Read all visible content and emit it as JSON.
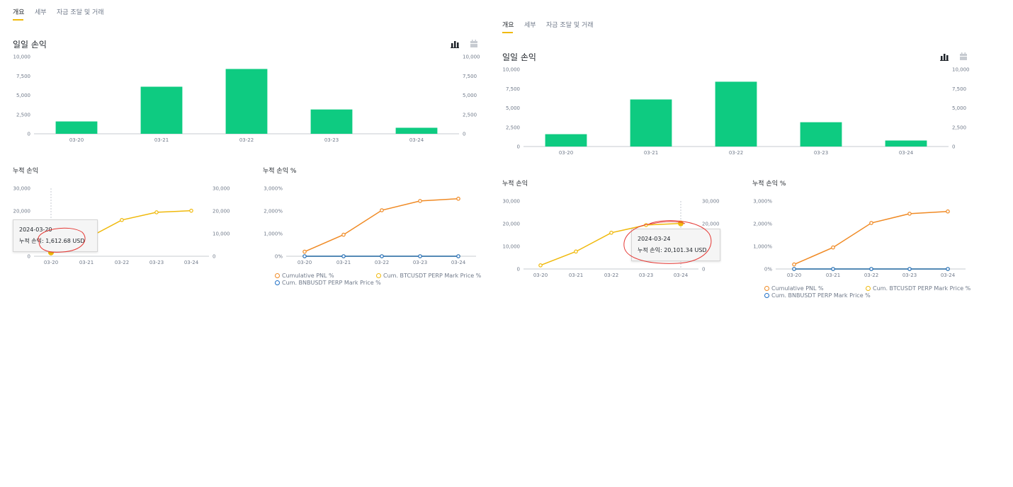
{
  "tabs": [
    "개요",
    "세부",
    "자금 조달 및 거래"
  ],
  "daily_title": "일일 손익",
  "cum_title": "누적 손익",
  "cum_pct_title": "누적 손익 %",
  "icons": {
    "bar_toggle": "bar-chart-icon",
    "calendar_toggle": "calendar-icon"
  },
  "colors": {
    "bar": "#0ecb81",
    "yellow": "#f0b90b",
    "orange": "#f08a24",
    "blue": "#1f6fc5",
    "accent": "#f0b90b"
  },
  "left_tooltip": {
    "date": "2024-03-20",
    "line": "누적 손익: 1,612.68 USD"
  },
  "right_tooltip": {
    "date": "2024-03-24",
    "line": "누적 손익: 20,101.34 USD"
  },
  "chart_data": [
    {
      "type": "bar",
      "title": "일일 손익",
      "categories": [
        "03-20",
        "03-21",
        "03-22",
        "03-23",
        "03-24"
      ],
      "values": [
        1600,
        6100,
        8400,
        3150,
        780
      ],
      "ylim": [
        0,
        10000
      ],
      "left_ticks": [
        "10,000",
        "7,500",
        "5,000",
        "2,500",
        "0"
      ],
      "right_ticks": [
        "10,000",
        "7,500",
        "5,000",
        "2,500",
        "0"
      ]
    },
    {
      "type": "line",
      "title": "누적 손익",
      "categories": [
        "03-20",
        "03-21",
        "03-22",
        "03-23",
        "03-24"
      ],
      "values": [
        1612.68,
        7700,
        16000,
        19400,
        20101.34
      ],
      "ylim": [
        0,
        30000
      ],
      "left_ticks": [
        "30,000",
        "20,000",
        "10,000",
        "0"
      ],
      "right_ticks": [
        "30,000",
        "20,000",
        "10,000",
        "0"
      ]
    },
    {
      "type": "line",
      "title": "누적 손익 %",
      "categories": [
        "03-20",
        "03-21",
        "03-22",
        "03-23",
        "03-24"
      ],
      "ylim": [
        0,
        3000
      ],
      "left_ticks": [
        "3,000%",
        "2,000%",
        "1,000%",
        "0%"
      ],
      "series": [
        {
          "name": "Cumulative PNL %",
          "values": [
            200,
            950,
            2030,
            2440,
            2540
          ]
        },
        {
          "name": "Cum. BTCUSDT PERP Mark Price %",
          "values": [
            0,
            0,
            0,
            0,
            0
          ]
        },
        {
          "name": "Cum. BNBUSDT PERP Mark Price %",
          "values": [
            0,
            0,
            0,
            0,
            0
          ]
        }
      ]
    }
  ]
}
